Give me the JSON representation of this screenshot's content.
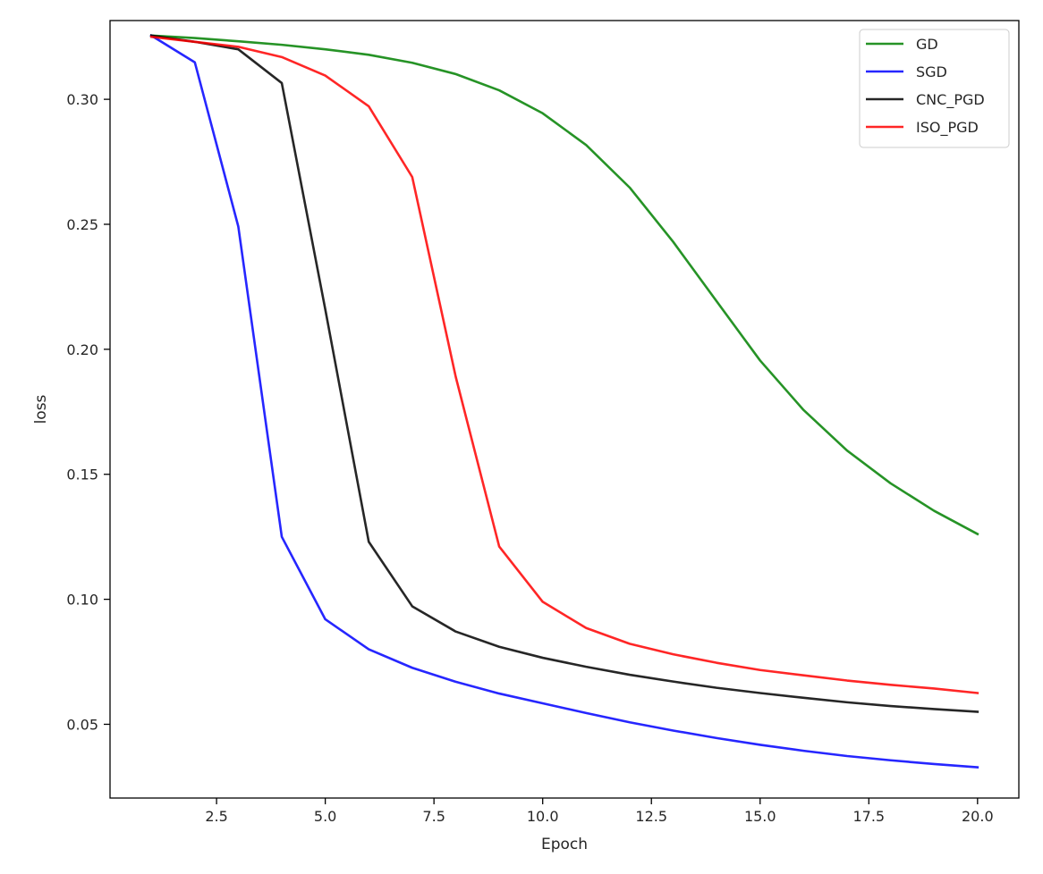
{
  "chart_data": {
    "type": "line",
    "title": "",
    "xlabel": "Epoch",
    "ylabel": "loss",
    "xlim": [
      0.05,
      20.95
    ],
    "ylim": [
      0.0205,
      0.3315
    ],
    "xticks": [
      2.5,
      5.0,
      7.5,
      10.0,
      12.5,
      15.0,
      17.5,
      20.0
    ],
    "xtick_labels": [
      "2.5",
      "5.0",
      "7.5",
      "10.0",
      "12.5",
      "15.0",
      "17.5",
      "20.0"
    ],
    "yticks": [
      0.05,
      0.1,
      0.15,
      0.2,
      0.25,
      0.3
    ],
    "ytick_labels": [
      "0.05",
      "0.10",
      "0.15",
      "0.20",
      "0.25",
      "0.30"
    ],
    "grid": false,
    "legend_position": "top-right",
    "x": [
      1,
      2,
      3,
      4,
      5,
      6,
      7,
      8,
      9,
      10,
      11,
      12,
      13,
      14,
      15,
      16,
      17,
      18,
      19,
      20
    ],
    "series": [
      {
        "name": "GD",
        "color": "#008000",
        "values": [
          0.3255,
          0.3245,
          0.3232,
          0.3218,
          0.32,
          0.3178,
          0.3146,
          0.3101,
          0.3036,
          0.2944,
          0.2817,
          0.2647,
          0.243,
          0.2192,
          0.1955,
          0.1757,
          0.1595,
          0.1464,
          0.1354,
          0.1261
        ]
      },
      {
        "name": "SGD",
        "color": "#0000ff",
        "values": [
          0.3255,
          0.3148,
          0.2491,
          0.125,
          0.092,
          0.08,
          0.0726,
          0.067,
          0.0623,
          0.0584,
          0.0545,
          0.0508,
          0.0475,
          0.0445,
          0.0418,
          0.0394,
          0.0373,
          0.0356,
          0.0341,
          0.0328
        ]
      },
      {
        "name": "CNC_PGD",
        "color": "#000000",
        "values": [
          0.3255,
          0.323,
          0.32,
          0.3065,
          0.216,
          0.123,
          0.0972,
          0.0871,
          0.081,
          0.0766,
          0.073,
          0.0698,
          0.0671,
          0.0646,
          0.0625,
          0.0606,
          0.0588,
          0.0573,
          0.0561,
          0.055
        ]
      },
      {
        "name": "ISO_PGD",
        "color": "#ff0000",
        "values": [
          0.325,
          0.323,
          0.321,
          0.3169,
          0.3095,
          0.2972,
          0.2689,
          0.189,
          0.1211,
          0.099,
          0.0885,
          0.0822,
          0.078,
          0.0746,
          0.0717,
          0.0696,
          0.0675,
          0.0658,
          0.0643,
          0.0625
        ]
      }
    ]
  }
}
